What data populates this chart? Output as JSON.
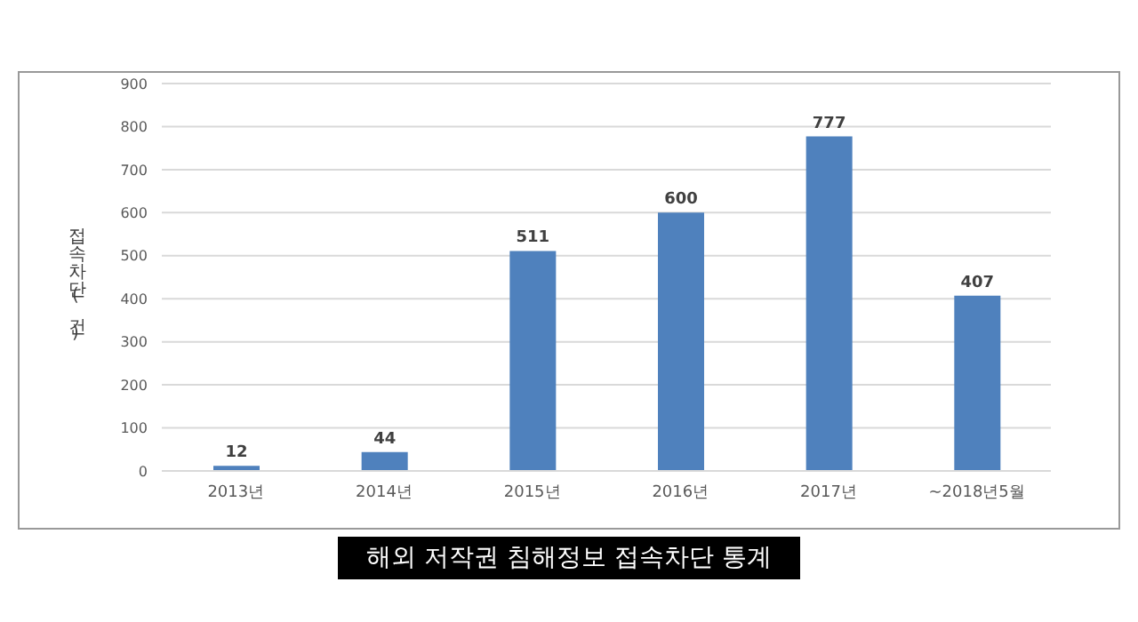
{
  "chart_data": {
    "type": "bar",
    "title": "해외 저작권 침해정보 접속차단 통계",
    "ylabel": "접속차단(건)",
    "categories": [
      "2013년",
      "2014년",
      "2015년",
      "2016년",
      "2017년",
      "~2018년5월"
    ],
    "values": [
      12,
      44,
      511,
      600,
      777,
      407
    ],
    "color": "#4f81bd",
    "ylim": [
      0,
      900
    ],
    "yticks": [
      0,
      100,
      200,
      300,
      400,
      500,
      600,
      700,
      800,
      900
    ],
    "grid": "y",
    "data_labels": true
  }
}
